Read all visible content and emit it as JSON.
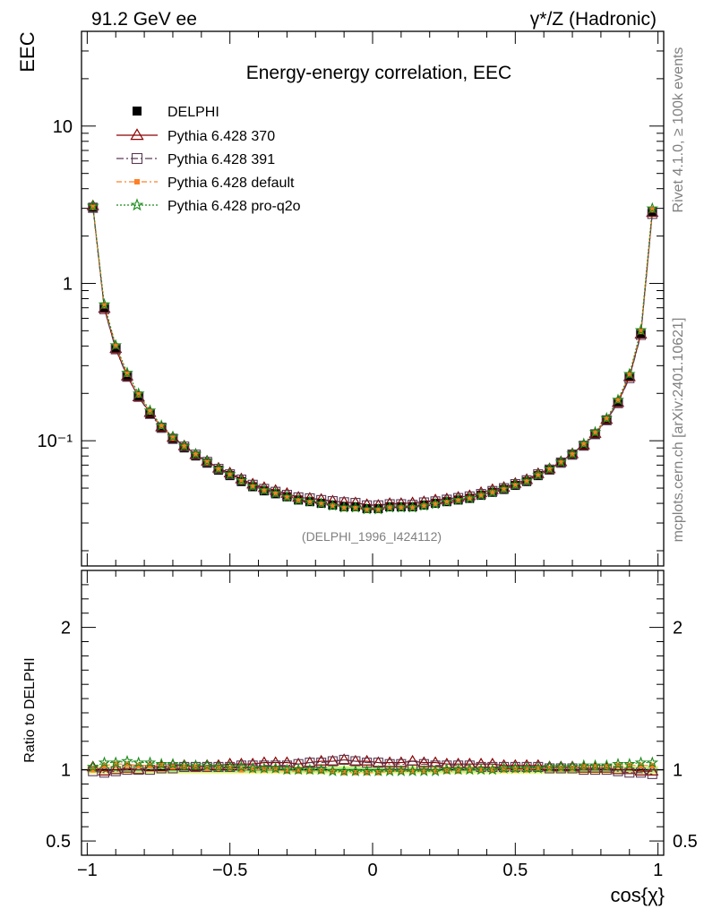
{
  "header": {
    "energy_label": "91.2 GeV ee",
    "process_label": "γ*/Z (Hadronic)"
  },
  "side_text": {
    "rivet": "Rivet 4.1.0, ≥ 100k events",
    "mcplots": "mcplots.cern.ch [arXiv:2401.10621]"
  },
  "colors": {
    "data": "#000000",
    "p370": "#8b0000",
    "p391": "#5a3a55",
    "pdefault": "#ff7f27",
    "pq2o": "#1a8a1a",
    "band_yellow": "#fff59a",
    "band_green": "#b6f08a"
  },
  "chart_data": [
    {
      "type": "scatter",
      "title": "Energy-energy correlation, EEC",
      "xlabel": "cos{χ}",
      "ylabel": "EEC",
      "yscale": "log",
      "ylim": [
        0.016,
        40
      ],
      "xlim": [
        -1.02,
        1.02
      ],
      "x_ticks": [
        "−1",
        "−0.5",
        "0",
        "0.5",
        "1"
      ],
      "y_ticks": [
        "10",
        "1",
        "10⁻¹"
      ],
      "analysis_label": "(DELPHI_1996_I424112)",
      "legend": [
        "DELPHI",
        "Pythia 6.428 370",
        "Pythia 6.428 391",
        "Pythia 6.428 default",
        "Pythia 6.428 pro-q2o"
      ],
      "x": [
        -0.98,
        -0.94,
        -0.9,
        -0.86,
        -0.82,
        -0.78,
        -0.74,
        -0.7,
        -0.66,
        -0.62,
        -0.58,
        -0.54,
        -0.5,
        -0.46,
        -0.42,
        -0.38,
        -0.34,
        -0.3,
        -0.26,
        -0.22,
        -0.18,
        -0.14,
        -0.1,
        -0.06,
        -0.02,
        0.02,
        0.06,
        0.1,
        0.14,
        0.18,
        0.22,
        0.26,
        0.3,
        0.34,
        0.38,
        0.42,
        0.46,
        0.5,
        0.54,
        0.58,
        0.62,
        0.66,
        0.7,
        0.74,
        0.78,
        0.82,
        0.86,
        0.9,
        0.94,
        0.98
      ],
      "series": [
        {
          "name": "DELPHI",
          "values": [
            3.05,
            0.7,
            0.385,
            0.255,
            0.19,
            0.148,
            0.12,
            0.102,
            0.09,
            0.08,
            0.072,
            0.065,
            0.06,
            0.055,
            0.051,
            0.048,
            0.046,
            0.044,
            0.042,
            0.041,
            0.04,
            0.039,
            0.038,
            0.038,
            0.037,
            0.037,
            0.038,
            0.038,
            0.038,
            0.039,
            0.04,
            0.041,
            0.042,
            0.043,
            0.045,
            0.047,
            0.049,
            0.052,
            0.055,
            0.06,
            0.065,
            0.072,
            0.081,
            0.093,
            0.11,
            0.135,
            0.175,
            0.255,
            0.48,
            2.85
          ]
        },
        {
          "name": "Pythia 6.428 370",
          "ratio": [
            1.02,
            0.99,
            1.0,
            1.01,
            1.0,
            1.02,
            1.02,
            1.03,
            1.03,
            1.02,
            1.03,
            1.03,
            1.04,
            1.04,
            1.04,
            1.05,
            1.05,
            1.05,
            1.04,
            1.05,
            1.06,
            1.06,
            1.07,
            1.06,
            1.06,
            1.05,
            1.05,
            1.05,
            1.06,
            1.05,
            1.05,
            1.04,
            1.04,
            1.04,
            1.04,
            1.04,
            1.03,
            1.03,
            1.03,
            1.03,
            1.02,
            1.02,
            1.02,
            1.01,
            1.01,
            1.01,
            1.0,
            1.0,
            0.99,
            0.99
          ]
        },
        {
          "name": "Pythia 6.428 391",
          "ratio": [
            0.99,
            0.98,
            0.99,
            1.0,
            1.0,
            1.0,
            1.01,
            1.01,
            1.02,
            1.02,
            1.02,
            1.02,
            1.02,
            1.03,
            1.03,
            1.03,
            1.03,
            1.03,
            1.04,
            1.05,
            1.05,
            1.06,
            1.07,
            1.06,
            1.05,
            1.05,
            1.04,
            1.04,
            1.03,
            1.04,
            1.03,
            1.03,
            1.03,
            1.03,
            1.02,
            1.02,
            1.02,
            1.02,
            1.02,
            1.02,
            1.01,
            1.01,
            1.01,
            1.0,
            1.0,
            1.0,
            0.99,
            0.98,
            0.98,
            0.97
          ]
        },
        {
          "name": "Pythia 6.428 default",
          "ratio": [
            1.0,
            1.03,
            1.04,
            1.04,
            1.03,
            1.03,
            1.03,
            1.02,
            1.02,
            1.02,
            1.01,
            1.01,
            1.01,
            1.0,
            1.0,
            1.0,
            1.0,
            0.99,
            0.99,
            0.99,
            0.99,
            0.99,
            0.98,
            0.98,
            0.98,
            0.98,
            0.99,
            0.99,
            0.99,
            0.99,
            0.99,
            0.99,
            0.99,
            1.0,
            1.0,
            1.0,
            1.0,
            1.0,
            1.0,
            1.01,
            1.01,
            1.01,
            1.01,
            1.02,
            1.02,
            1.02,
            1.03,
            1.03,
            1.03,
            1.03
          ]
        },
        {
          "name": "Pythia 6.428 pro-q2o",
          "ratio": [
            1.02,
            1.05,
            1.05,
            1.06,
            1.05,
            1.05,
            1.04,
            1.04,
            1.03,
            1.03,
            1.03,
            1.02,
            1.02,
            1.02,
            1.01,
            1.01,
            1.01,
            1.0,
            1.0,
            1.0,
            1.0,
            0.99,
            0.99,
            0.99,
            0.99,
            0.99,
            0.99,
            0.99,
            0.99,
            0.99,
            0.99,
            1.0,
            1.0,
            1.0,
            1.0,
            1.0,
            1.01,
            1.01,
            1.01,
            1.01,
            1.02,
            1.02,
            1.02,
            1.03,
            1.03,
            1.03,
            1.04,
            1.04,
            1.05,
            1.05
          ]
        }
      ]
    },
    {
      "type": "scatter",
      "title": "",
      "xlabel": "cos{χ}",
      "ylabel": "Ratio to DELPHI",
      "ylim": [
        0.4,
        2.4
      ],
      "y_ticks": [
        "2",
        "1",
        "0.5"
      ],
      "band_inner": 0.02,
      "band_outer": 0.03
    }
  ]
}
